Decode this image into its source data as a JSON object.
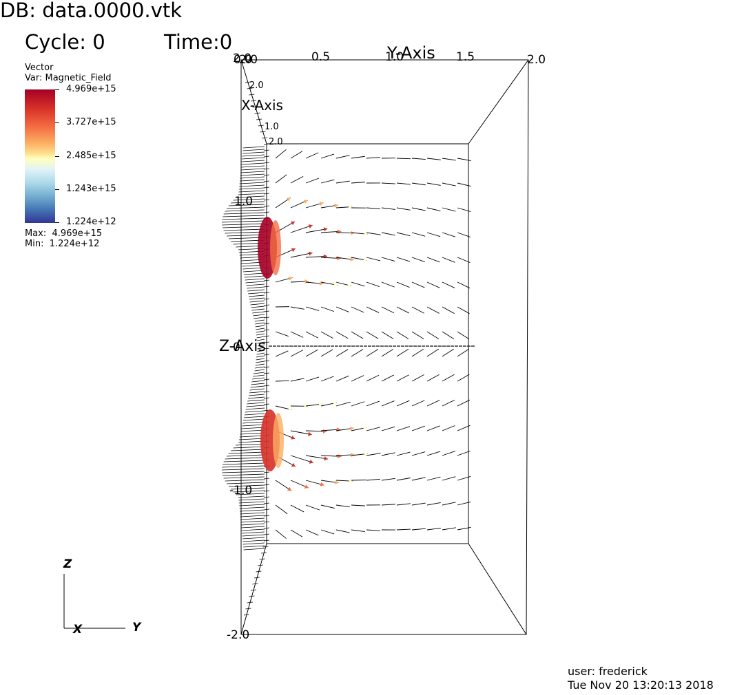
{
  "header": {
    "db": "DB: data.0000.vtk",
    "cycle": "Cycle: 0",
    "time": "Time:0"
  },
  "legend": {
    "type": "Vector",
    "var": "Var: Magnetic_Field",
    "ticks": [
      "4.969e+15",
      "3.727e+15",
      "2.485e+15",
      "1.243e+15",
      "1.224e+12"
    ],
    "max": "Max:  4.969e+15",
    "min": "Min:  1.224e+12",
    "colormap": [
      "#a50026",
      "#d73027",
      "#f46d43",
      "#fdae61",
      "#fee090",
      "#ffffbf",
      "#e0f3f8",
      "#abd9e9",
      "#74add1",
      "#4575b4",
      "#313695"
    ]
  },
  "axes": {
    "y_title": "Y-Axis",
    "x_title": "X-Axis",
    "z_title": "Z-Axis",
    "y_ticks": [
      "0.0",
      "0.5",
      "1.0",
      "1.5",
      "2.0"
    ],
    "y_start_overlap": "2.0",
    "x_ticks": [
      "2.0",
      "1.0",
      "2.0"
    ],
    "z_ticks": [
      "1.0",
      "0",
      "-1.0",
      "-2.0"
    ],
    "z_top_overlap": "2.0"
  },
  "triad": {
    "z": "Z",
    "x": "X",
    "y": "Y"
  },
  "footer": {
    "user": "user: frederick",
    "date": "Tue Nov 20 13:20:13 2018"
  }
}
